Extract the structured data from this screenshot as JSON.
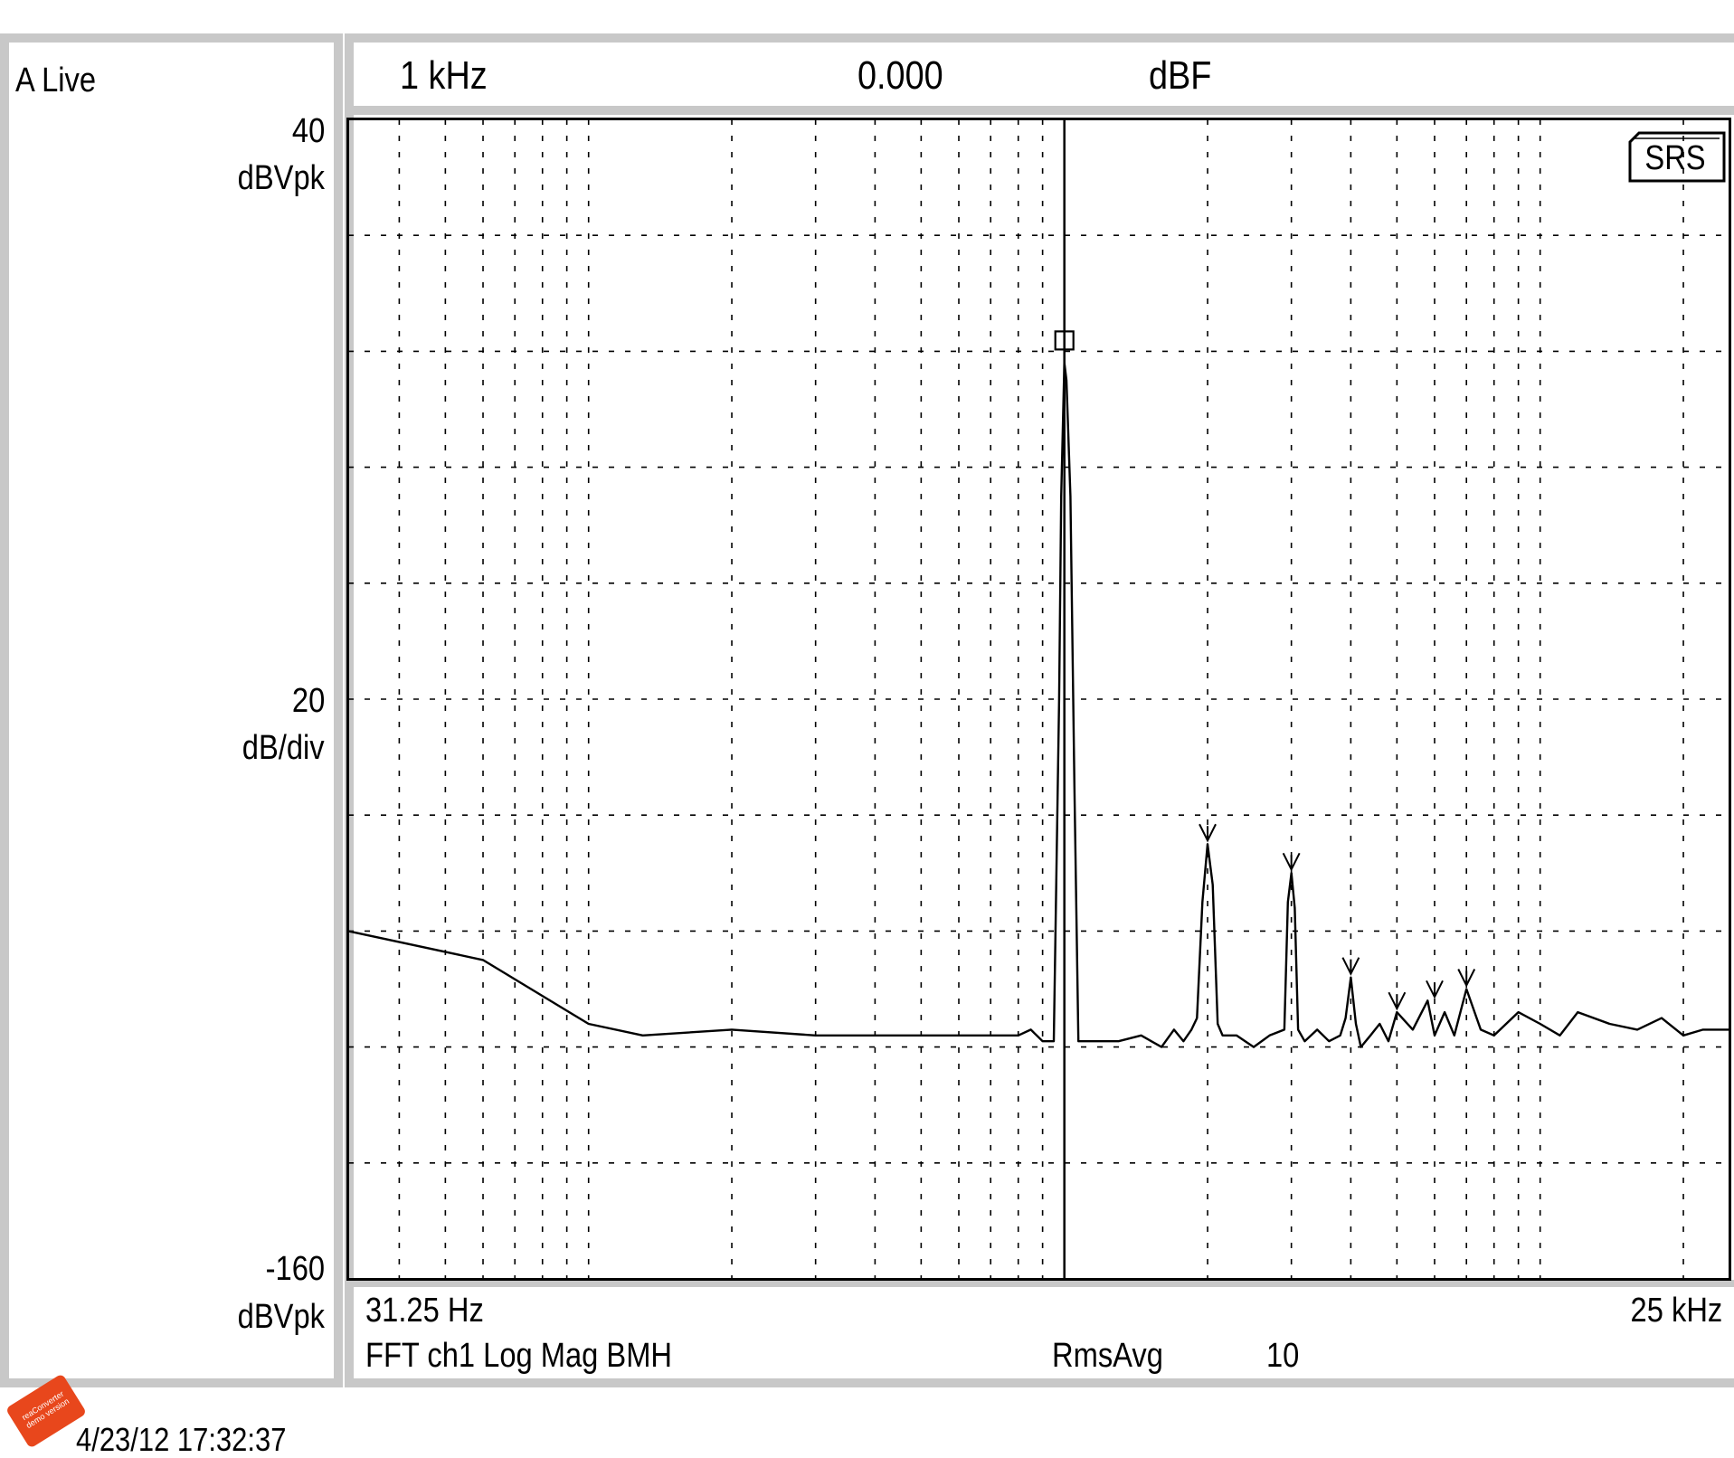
{
  "channel_label": "A Live",
  "header": {
    "marker_x": "1 kHz",
    "marker_y": "0.000",
    "marker_unit": "dBF"
  },
  "yaxis": {
    "top_value": "40",
    "top_unit": "dBVpk",
    "scale_value": "20",
    "scale_unit": "dB/div",
    "bottom_value": "-160",
    "bottom_unit": "dBVpk"
  },
  "footer": {
    "start_freq": "31.25 Hz",
    "stop_freq": "25 kHz",
    "measurement": "FFT ch1 Log Mag BMH",
    "avg_label": "RmsAvg",
    "avg_count": "10"
  },
  "logo": "SRS",
  "timestamp": "4/23/12  17:32:37",
  "watermark": "reaConverter demo version",
  "chart_data": {
    "type": "line",
    "xscale": "log",
    "xlim": [
      31.25,
      25000
    ],
    "ylim": [
      -160,
      40
    ],
    "grid": true,
    "marker": {
      "x": 1000,
      "y": 0.0
    },
    "harmonics": [
      2000,
      3000,
      4000,
      5000,
      6000,
      7000
    ],
    "series": [
      {
        "x": [
          31.25,
          60,
          100,
          130,
          200,
          300,
          500,
          800,
          850,
          900,
          950,
          960,
          975,
          985,
          1000,
          1010,
          1030,
          1050,
          1070,
          1100,
          1300,
          1450,
          1600,
          1700,
          1780,
          1850,
          1900,
          1950,
          2000,
          2050,
          2100,
          2150,
          2300,
          2500,
          2700,
          2900,
          2950,
          3000,
          3050,
          3100,
          3200,
          3400,
          3600,
          3800,
          3900,
          4000,
          4100,
          4200,
          4400,
          4600,
          4800,
          5000,
          5400,
          5800,
          6000,
          6300,
          6600,
          7000,
          7500,
          8000,
          9000,
          10000,
          11000,
          12000,
          14000,
          16000,
          18000,
          20000,
          22000,
          25000
        ],
        "y": [
          -100,
          -105,
          -116,
          -118,
          -117,
          -118,
          -118,
          -118,
          -117,
          -119,
          -119,
          -95,
          -60,
          -25,
          -2,
          -5,
          -25,
          -75,
          -119,
          -119,
          -119,
          -118,
          -120,
          -117,
          -119,
          -117,
          -115,
          -95,
          -85,
          -92,
          -116,
          -118,
          -118,
          -120,
          -118,
          -117,
          -95,
          -90,
          -96,
          -117,
          -119,
          -117,
          -119,
          -118,
          -115,
          -108,
          -116,
          -120,
          -118,
          -116,
          -119,
          -114,
          -117,
          -112,
          -118,
          -114,
          -118,
          -110,
          -117,
          -118,
          -114,
          -116,
          -118,
          -114,
          -116,
          -117,
          -115,
          -118,
          -117,
          -117
        ]
      }
    ]
  }
}
